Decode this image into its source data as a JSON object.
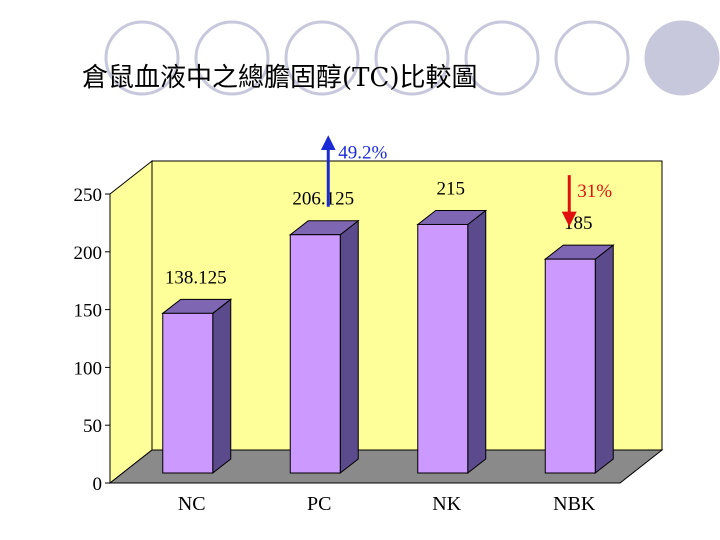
{
  "chart_data": {
    "type": "bar",
    "title": "倉鼠血液中之總膽固醇(TC)比較圖",
    "categories": [
      "NC",
      "PC",
      "NK",
      "NBK"
    ],
    "values": [
      138.125,
      206.125,
      215,
      185
    ],
    "data_labels": [
      "138.125",
      "206.125",
      "215",
      "185"
    ],
    "ylim": [
      0,
      250
    ],
    "yticks": [
      0,
      50,
      100,
      150,
      200,
      250
    ],
    "xlabel": "",
    "ylabel": "",
    "three_d": true,
    "annotations": [
      {
        "text": "49.2%",
        "direction": "up",
        "color": "#1a2bd6",
        "category": "PC"
      },
      {
        "text": "31%",
        "direction": "down",
        "color": "#e01010",
        "category": "NBK"
      }
    ]
  },
  "colors": {
    "bar_front": "#cc99ff",
    "bar_side": "#5b4a8c",
    "bar_top": "#7f66b3",
    "wall": "#ffff99",
    "floor": "#8a8a8a",
    "circles": "#c8c8dc"
  }
}
